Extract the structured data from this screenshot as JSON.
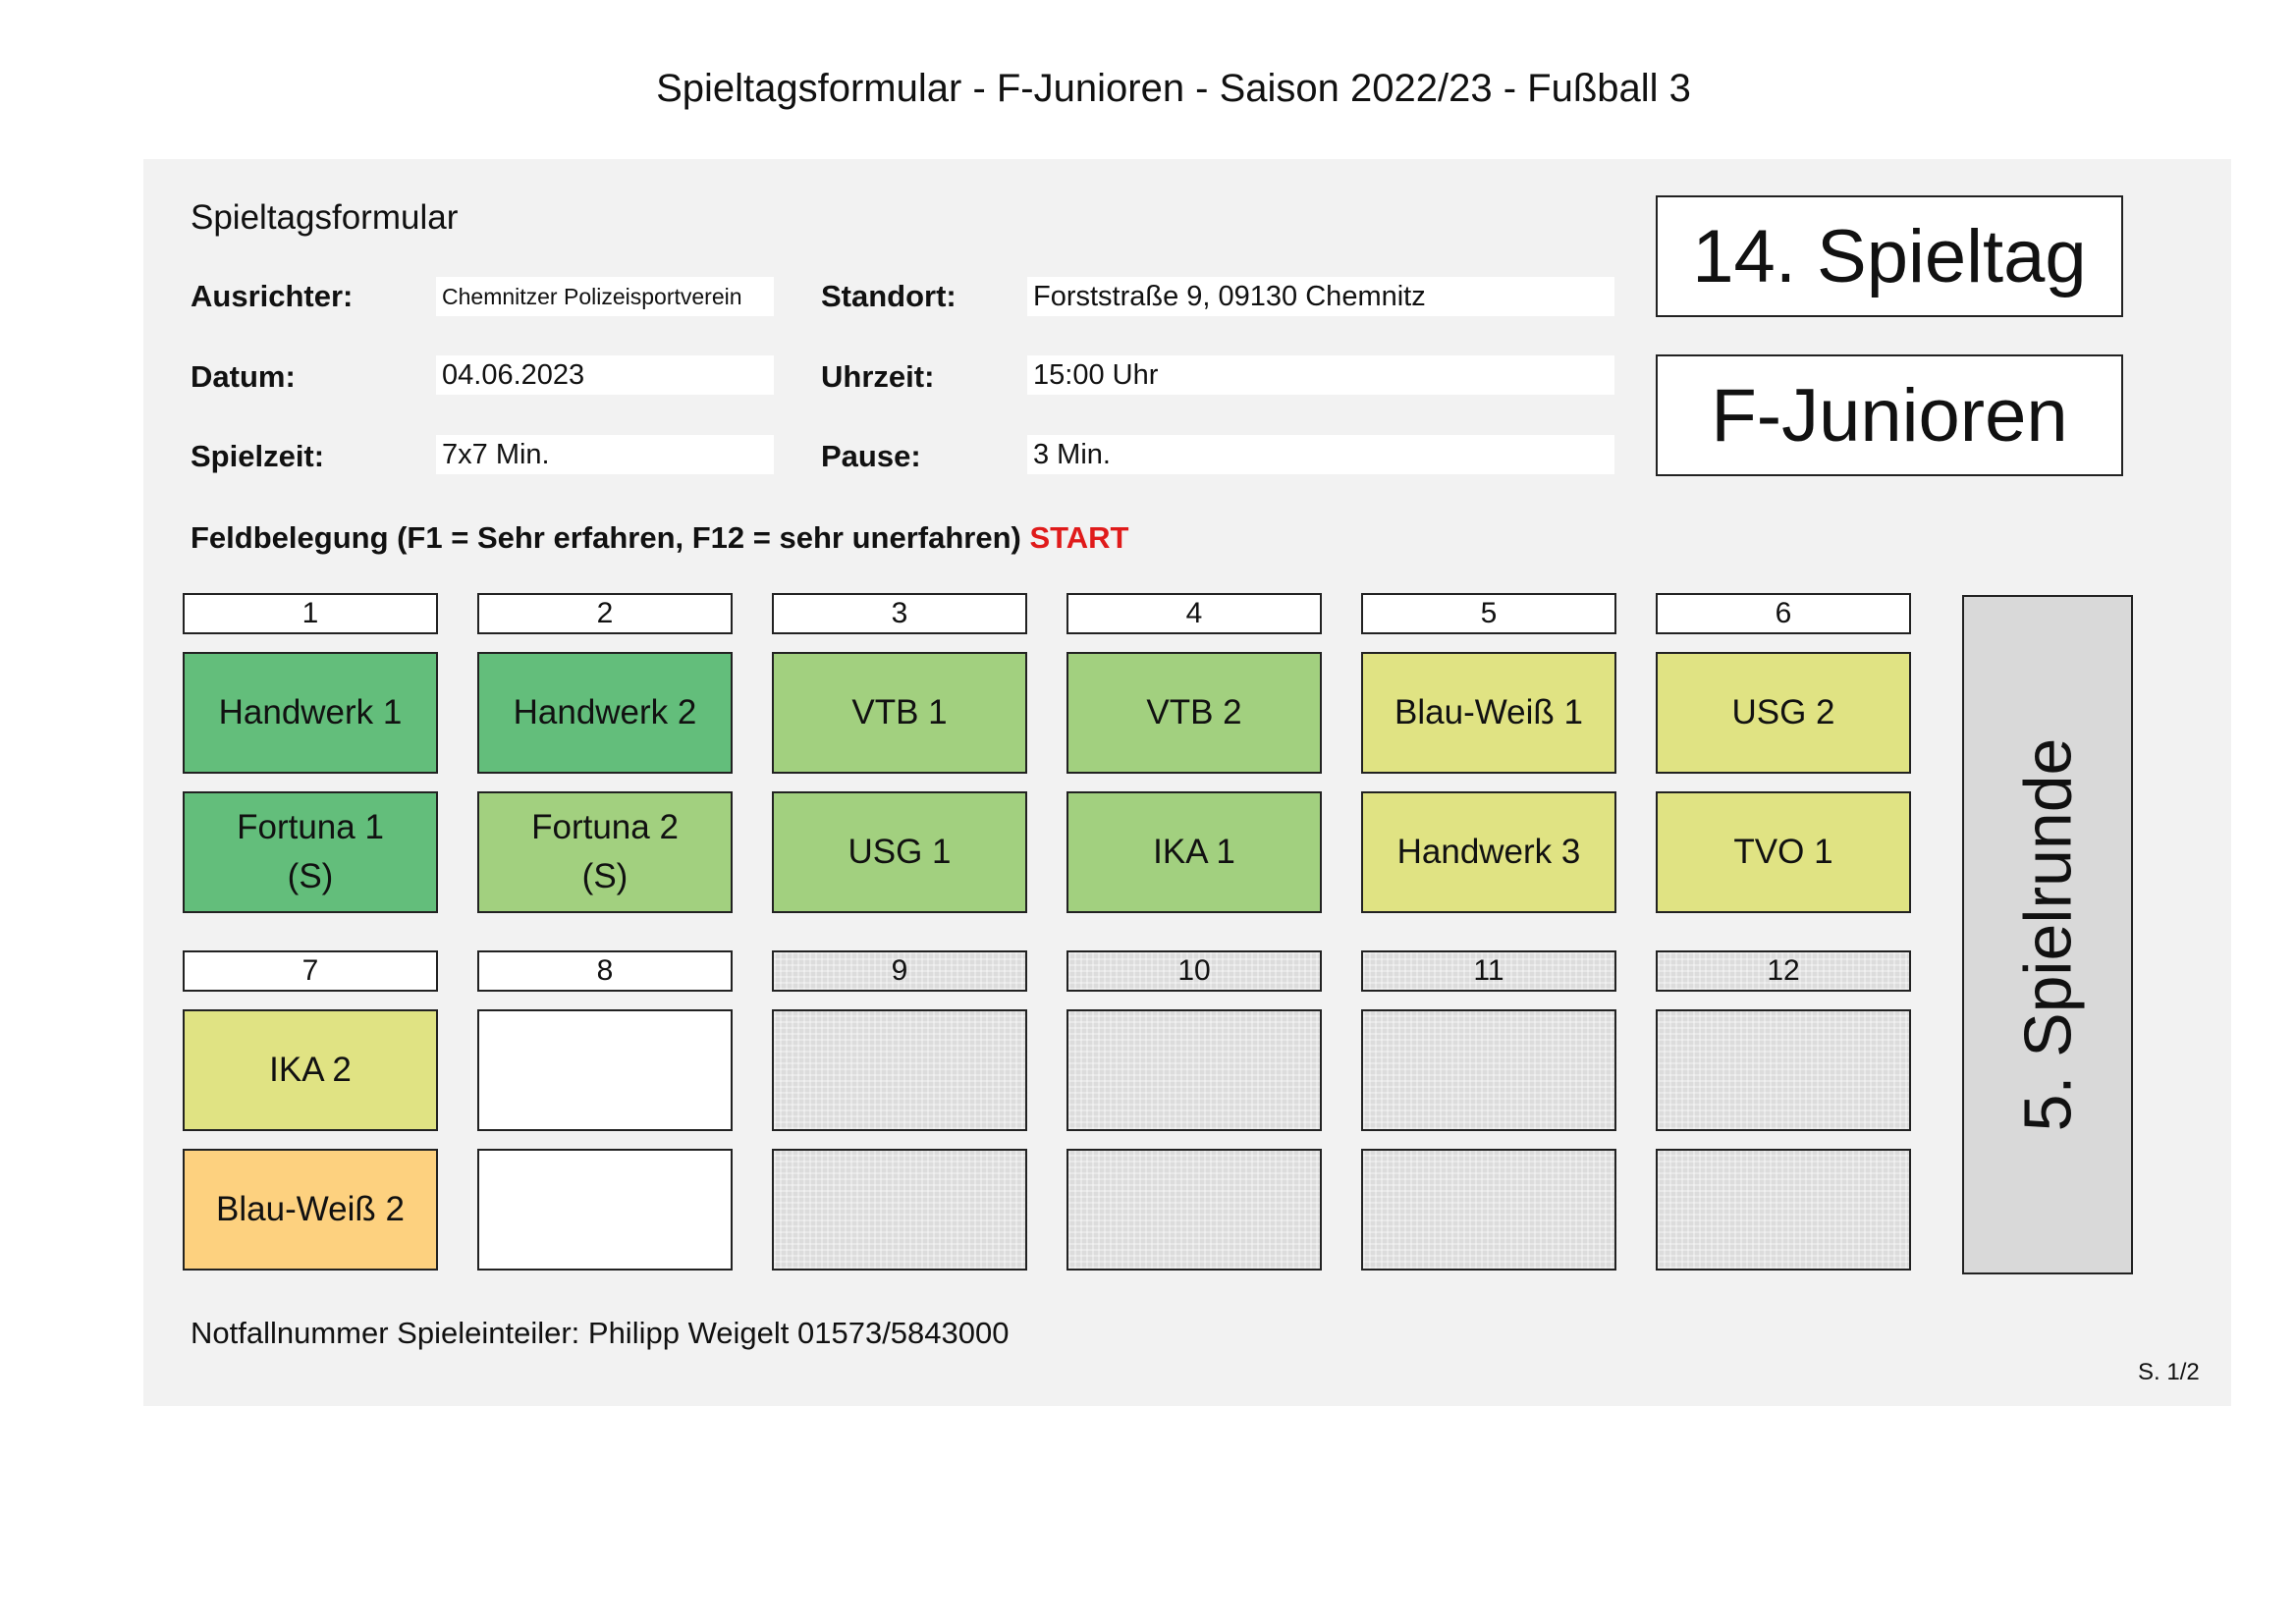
{
  "document_title": "Spieltagsformular - F-Junioren - Saison 2022/23 - Fußball 3",
  "form": {
    "section_title": "Spieltagsformular",
    "ausrichter_label": "Ausrichter:",
    "ausrichter_value": "Chemnitzer Polizeisportverein",
    "standort_label": "Standort:",
    "standort_value": "Forststraße 9, 09130 Chemnitz",
    "datum_label": "Datum:",
    "datum_value": "04.06.2023",
    "uhrzeit_label": "Uhrzeit:",
    "uhrzeit_value": "15:00 Uhr",
    "spielzeit_label": "Spielzeit:",
    "spielzeit_value": "7x7 Min.",
    "pause_label": "Pause:",
    "pause_value": "3 Min."
  },
  "spieltag": "14. Spieltag",
  "altersklasse": "F-Junioren",
  "feldbelegung": {
    "title": "Feldbelegung (F1 = Sehr erfahren, F12 = sehr unerfahren)",
    "status": "START"
  },
  "colors": {
    "dark_green": "#63be7b",
    "light_green": "#a2d07f",
    "yellow_green": "#e0e383",
    "orange": "#fdd17f",
    "empty": "#ffffff",
    "unused": "#dcdcdc",
    "start": "#e01b1b"
  },
  "fields": [
    {
      "number": "1",
      "team_a": [
        "Handwerk 1"
      ],
      "team_b": [
        "Fortuna 1",
        "(S)"
      ],
      "color_a": "#63be7b",
      "color_b": "#63be7b",
      "unused": false
    },
    {
      "number": "2",
      "team_a": [
        "Handwerk 2"
      ],
      "team_b": [
        "Fortuna 2",
        "(S)"
      ],
      "color_a": "#63be7b",
      "color_b": "#a2d07f",
      "unused": false
    },
    {
      "number": "3",
      "team_a": [
        "VTB 1"
      ],
      "team_b": [
        "USG 1"
      ],
      "color_a": "#a2d07f",
      "color_b": "#a2d07f",
      "unused": false
    },
    {
      "number": "4",
      "team_a": [
        "VTB 2"
      ],
      "team_b": [
        "IKA 1"
      ],
      "color_a": "#a2d07f",
      "color_b": "#a2d07f",
      "unused": false
    },
    {
      "number": "5",
      "team_a": [
        "Blau-Weiß 1"
      ],
      "team_b": [
        "Handwerk 3"
      ],
      "color_a": "#e0e383",
      "color_b": "#e0e383",
      "unused": false
    },
    {
      "number": "6",
      "team_a": [
        "USG 2"
      ],
      "team_b": [
        "TVO 1"
      ],
      "color_a": "#e0e383",
      "color_b": "#e0e383",
      "unused": false
    },
    {
      "number": "7",
      "team_a": [
        "IKA 2"
      ],
      "team_b": [
        "Blau-Weiß 2"
      ],
      "color_a": "#e0e383",
      "color_b": "#fdd17f",
      "unused": false
    },
    {
      "number": "8",
      "team_a": [],
      "team_b": [],
      "color_a": "#ffffff",
      "color_b": "#ffffff",
      "unused": false
    },
    {
      "number": "9",
      "team_a": [],
      "team_b": [],
      "color_a": "#dcdcdc",
      "color_b": "#dcdcdc",
      "unused": true
    },
    {
      "number": "10",
      "team_a": [],
      "team_b": [],
      "color_a": "#dcdcdc",
      "color_b": "#dcdcdc",
      "unused": true
    },
    {
      "number": "11",
      "team_a": [],
      "team_b": [],
      "color_a": "#dcdcdc",
      "color_b": "#dcdcdc",
      "unused": true
    },
    {
      "number": "12",
      "team_a": [],
      "team_b": [],
      "color_a": "#dcdcdc",
      "color_b": "#dcdcdc",
      "unused": true
    }
  ],
  "spielrunde": "5. Spielrunde",
  "footer": {
    "notfall": "Notfallnummer Spieleinteiler: Philipp Weigelt 01573/5843000",
    "page": "S. 1/2"
  }
}
